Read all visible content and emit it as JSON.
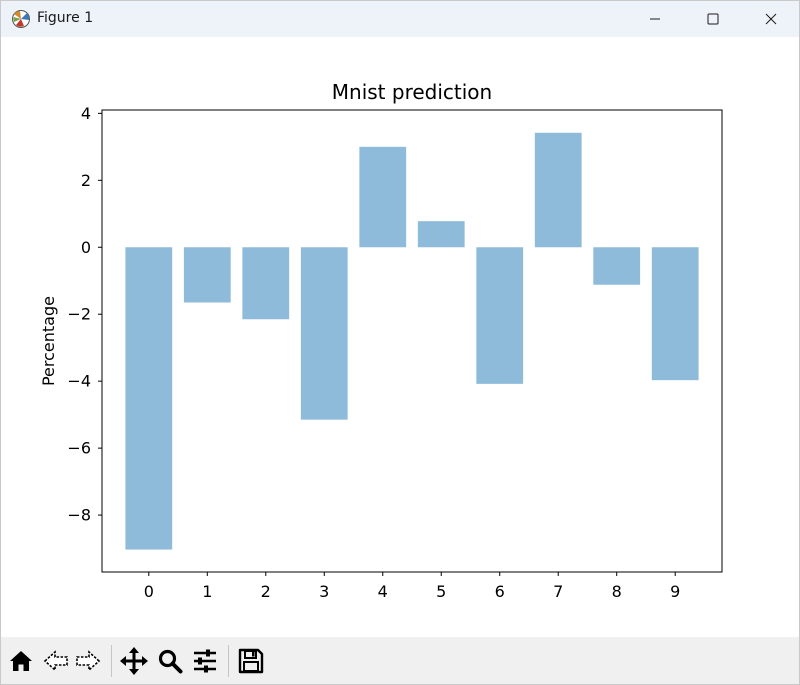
{
  "window": {
    "title": "Figure 1",
    "icon": "matplotlib-icon",
    "controls": [
      "minimize-icon",
      "maximize-icon",
      "close-icon"
    ]
  },
  "toolbar": {
    "tools": [
      "home-icon",
      "back-icon",
      "forward-icon",
      "pan-icon",
      "zoom-icon",
      "configure-subplots-icon",
      "save-icon"
    ]
  },
  "chart_data": {
    "type": "bar",
    "title": "Mnist prediction",
    "xlabel": "",
    "ylabel": "Percentage",
    "categories": [
      "0",
      "1",
      "2",
      "3",
      "4",
      "5",
      "6",
      "7",
      "8",
      "9"
    ],
    "values": [
      -9.03,
      -1.65,
      -2.15,
      -5.15,
      3.0,
      0.78,
      -4.08,
      3.42,
      -1.12,
      -3.97
    ],
    "ylim": [
      -9.7,
      4.1
    ],
    "yticks": [
      4,
      2,
      0,
      -2,
      -4,
      -6,
      -8
    ],
    "ytick_labels": [
      "4",
      "2",
      "0",
      "−2",
      "−4",
      "−6",
      "−8"
    ],
    "bar_color": "#8fbbdb",
    "grid": false,
    "legend": "none"
  }
}
